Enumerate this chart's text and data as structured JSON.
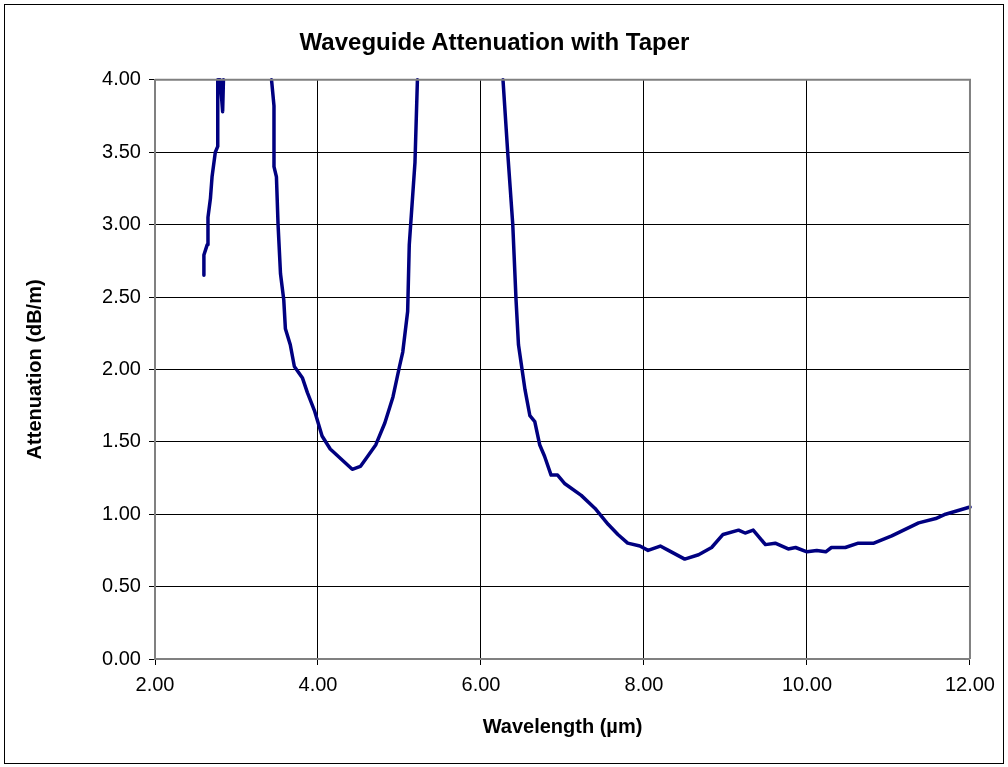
{
  "chart_data": {
    "type": "line",
    "title": "Waveguide Attenuation with Taper",
    "xlabel": "Wavelength (µm)",
    "ylabel": "Attenuation (dB/m)",
    "xlim": [
      2,
      12
    ],
    "ylim": [
      0,
      4
    ],
    "xticks": [
      {
        "value": 2,
        "label": "2.00"
      },
      {
        "value": 4,
        "label": "4.00"
      },
      {
        "value": 6,
        "label": "6.00"
      },
      {
        "value": 8,
        "label": "8.00"
      },
      {
        "value": 10,
        "label": "10.00"
      },
      {
        "value": 12,
        "label": "12.00"
      }
    ],
    "yticks": [
      {
        "value": 0,
        "label": "0.00"
      },
      {
        "value": 0.5,
        "label": "0.50"
      },
      {
        "value": 1,
        "label": "1.00"
      },
      {
        "value": 1.5,
        "label": "1.50"
      },
      {
        "value": 2,
        "label": "2.00"
      },
      {
        "value": 2.5,
        "label": "2.50"
      },
      {
        "value": 3,
        "label": "3.00"
      },
      {
        "value": 3.5,
        "label": "3.50"
      },
      {
        "value": 4,
        "label": "4.00"
      }
    ],
    "grid": true,
    "legend": false,
    "marker": "none",
    "line_style": "solid",
    "series": [
      {
        "color": "#000080",
        "x": [
          2.6,
          2.6,
          2.64,
          2.65,
          2.68,
          2.7,
          2.74,
          2.77,
          2.77,
          2.8,
          2.83,
          2.84
        ],
        "values": [
          2.65,
          2.79,
          2.86,
          3.05,
          3.18,
          3.33,
          3.5,
          3.54,
          4.0,
          4.0,
          3.78,
          4.0
        ]
      },
      {
        "color": "#000080",
        "x": [
          3.43,
          3.46,
          3.46,
          3.49,
          3.51,
          3.54,
          3.58,
          3.6,
          3.66,
          3.71,
          3.81,
          3.87,
          3.96,
          4.05,
          4.15,
          4.42,
          4.52,
          4.61,
          4.71,
          4.82,
          4.92,
          5.0,
          5.04,
          5.1,
          5.12,
          5.19,
          5.22
        ],
        "values": [
          4.0,
          3.82,
          3.4,
          3.33,
          3.0,
          2.66,
          2.48,
          2.28,
          2.17,
          2.02,
          1.94,
          1.84,
          1.71,
          1.54,
          1.45,
          1.31,
          1.33,
          1.4,
          1.48,
          1.63,
          1.81,
          2.02,
          2.12,
          2.4,
          2.86,
          3.43,
          4.0
        ]
      },
      {
        "color": "#000080",
        "x": [
          6.27,
          6.33,
          6.39,
          6.43,
          6.46,
          6.54,
          6.6,
          6.66,
          6.72,
          6.78,
          6.86,
          6.94,
          7.03,
          7.23,
          7.4,
          7.56,
          7.68,
          7.8,
          7.95,
          8.05,
          8.2,
          8.3,
          8.5,
          8.67,
          8.83,
          8.97,
          9.16,
          9.24,
          9.34,
          9.49,
          9.61,
          9.77,
          9.86,
          10.0,
          10.12,
          10.23,
          10.3,
          10.47,
          10.63,
          10.82,
          11.04,
          11.37,
          11.58,
          11.7,
          12.0
        ],
        "values": [
          4.0,
          3.48,
          3.0,
          2.48,
          2.17,
          1.86,
          1.68,
          1.64,
          1.48,
          1.4,
          1.27,
          1.27,
          1.21,
          1.13,
          1.04,
          0.93,
          0.86,
          0.8,
          0.78,
          0.75,
          0.78,
          0.75,
          0.69,
          0.72,
          0.77,
          0.86,
          0.89,
          0.87,
          0.89,
          0.79,
          0.8,
          0.76,
          0.77,
          0.74,
          0.75,
          0.74,
          0.77,
          0.77,
          0.8,
          0.8,
          0.85,
          0.94,
          0.97,
          1.0,
          1.05
        ]
      }
    ]
  }
}
